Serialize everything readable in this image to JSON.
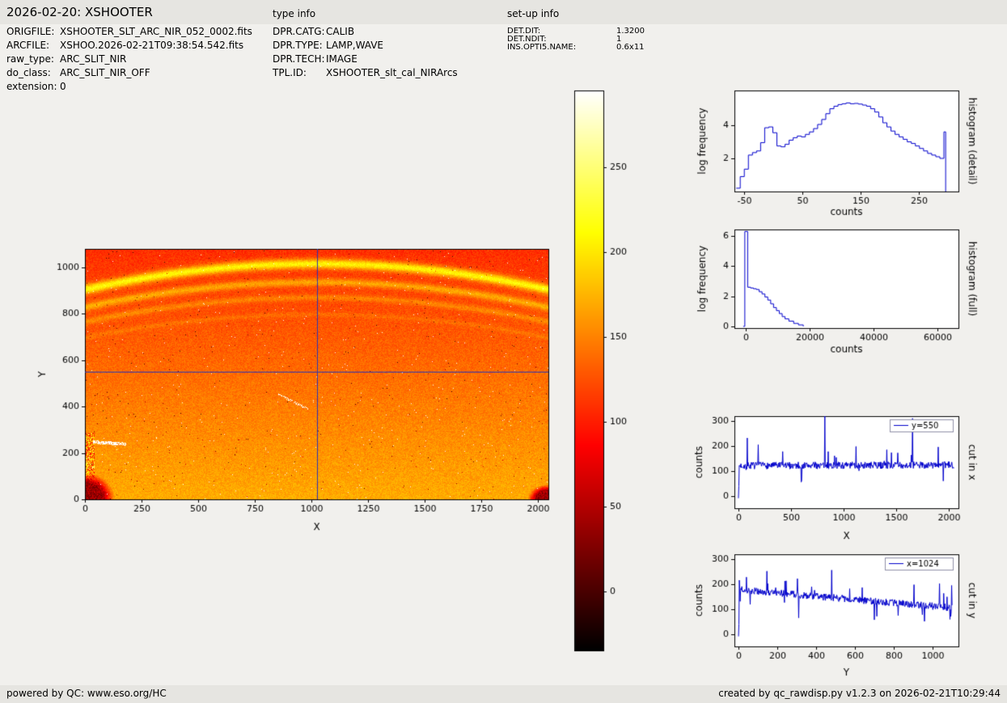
{
  "page": {
    "title": "2026-02-20: XSHOOTER",
    "footer_left": "powered by QC: www.eso.org/HC",
    "footer_right": "created by qc_rawdisp.py v1.2.3 on 2026-02-21T10:29:44"
  },
  "file_info": {
    "rows": [
      {
        "label": "ORIGFILE:",
        "value": "XSHOOTER_SLT_ARC_NIR_052_0002.fits"
      },
      {
        "label": "ARCFILE:",
        "value": "XSHOO.2026-02-21T09:38:54.542.fits"
      },
      {
        "label": "raw_type:",
        "value": "ARC_SLIT_NIR"
      },
      {
        "label": "do_class:",
        "value": "ARC_SLIT_NIR_OFF"
      },
      {
        "label": "extension:",
        "value": "0"
      }
    ]
  },
  "type_info": {
    "heading": "type info",
    "rows": [
      {
        "label": "DPR.CATG:",
        "value": "CALIB"
      },
      {
        "label": "DPR.TYPE:",
        "value": "LAMP,WAVE"
      },
      {
        "label": "DPR.TECH:",
        "value": "IMAGE"
      },
      {
        "label": "TPL.ID:",
        "value": "XSHOOTER_slt_cal_NIRArcs"
      }
    ]
  },
  "setup_info": {
    "heading": "set-up info",
    "rows": [
      {
        "label": "DET.DIT:",
        "value": "1.3200"
      },
      {
        "label": "DET.NDIT:",
        "value": "1"
      },
      {
        "label": "INS.OPTI5.NAME:",
        "value": "0.6x11"
      }
    ]
  },
  "chart_data": [
    {
      "id": "raw_image",
      "type": "heatmap",
      "xlabel": "X",
      "ylabel": "Y",
      "xlim": [
        0,
        2048
      ],
      "ylim": [
        0,
        1080
      ],
      "xticks": [
        0,
        250,
        500,
        750,
        1000,
        1250,
        1500,
        1750,
        2000
      ],
      "yticks": [
        0,
        200,
        400,
        600,
        800,
        1000
      ],
      "colormap": "hot",
      "vmin": -35,
      "vmax": 295,
      "crosshair": {
        "x": 1024,
        "y": 550,
        "color": "#2b35b5"
      },
      "background": {
        "top_counts": 108,
        "bottom_counts": 170,
        "noise": 14
      },
      "arcs": [
        {
          "peak_y": 1017,
          "sag": 111,
          "width": 15,
          "amplitude": 95
        },
        {
          "peak_y": 937,
          "sag": 108,
          "width": 12,
          "amplitude": 50
        },
        {
          "peak_y": 871,
          "sag": 105,
          "width": 10,
          "amplitude": 28
        },
        {
          "peak_y": 798,
          "sag": 100,
          "width": 8,
          "amplitude": 14
        }
      ],
      "defects": {
        "dark_corners": [
          "bottom-left",
          "bottom-right"
        ],
        "left_edge_speckle_below_y": 285,
        "hot_pixel_fraction": 0.0025
      }
    },
    {
      "id": "colorbar",
      "type": "colorbar",
      "colormap": "hot",
      "vmin": -35,
      "vmax": 295,
      "ticks": [
        0,
        50,
        100,
        150,
        200,
        250
      ]
    },
    {
      "id": "histogram_detail",
      "type": "line",
      "step": true,
      "title_right": "histogram (detail)",
      "xlabel": "counts",
      "ylabel": "log frequency",
      "line_color": "#0000cc",
      "xlim": [
        -67,
        318
      ],
      "ylim": [
        0,
        6.1
      ],
      "xticks": [
        -50,
        50,
        150,
        250
      ],
      "yticks": [
        2,
        4
      ],
      "x": [
        -64,
        -57,
        -50,
        -43,
        -36,
        -29,
        -22,
        -15,
        -8,
        -1,
        6,
        13,
        20,
        27,
        34,
        41,
        48,
        55,
        62,
        69,
        76,
        83,
        90,
        97,
        104,
        111,
        118,
        125,
        132,
        139,
        146,
        153,
        160,
        167,
        174,
        181,
        188,
        195,
        202,
        209,
        216,
        223,
        230,
        237,
        244,
        251,
        258,
        265,
        272,
        279,
        286,
        290,
        293,
        296
      ],
      "y": [
        0.2,
        0.9,
        1.35,
        2.2,
        2.35,
        2.45,
        2.95,
        3.85,
        3.9,
        3.55,
        2.75,
        2.7,
        2.85,
        3.1,
        3.25,
        3.35,
        3.3,
        3.45,
        3.6,
        3.8,
        4.05,
        4.35,
        4.7,
        5.0,
        5.15,
        5.25,
        5.3,
        5.35,
        5.3,
        5.32,
        5.28,
        5.22,
        5.15,
        5.0,
        4.8,
        4.5,
        4.15,
        3.9,
        3.65,
        3.45,
        3.3,
        3.15,
        3.0,
        2.9,
        2.75,
        2.6,
        2.45,
        2.3,
        2.2,
        2.1,
        2.0,
        2.0,
        3.6,
        0.0
      ]
    },
    {
      "id": "histogram_full",
      "type": "line",
      "step": true,
      "title_right": "histogram (full)",
      "xlabel": "counts",
      "ylabel": "log frequency",
      "line_color": "#0000cc",
      "xlim": [
        -3550,
        66600
      ],
      "ylim": [
        -0.11,
        6.43
      ],
      "xticks": [
        0,
        20000,
        40000,
        60000
      ],
      "yticks": [
        0,
        2,
        4,
        6
      ],
      "x": [
        -800,
        -300,
        600,
        1500,
        2400,
        3300,
        4200,
        5100,
        6000,
        6900,
        7800,
        8700,
        9600,
        10500,
        11400,
        12300,
        13500,
        15000,
        16500,
        18000
      ],
      "y": [
        0,
        6.3,
        2.6,
        2.55,
        2.5,
        2.45,
        2.3,
        2.15,
        1.95,
        1.75,
        1.5,
        1.25,
        1.05,
        0.85,
        0.65,
        0.5,
        0.35,
        0.2,
        0.1,
        0
      ]
    },
    {
      "id": "cut_in_x",
      "type": "line",
      "title_right": "cut in x",
      "xlabel": "X",
      "ylabel": "counts",
      "legend": "y=550",
      "line_color": "#0000cc",
      "xlim": [
        -38,
        2092
      ],
      "ylim": [
        -48,
        319
      ],
      "xticks": [
        0,
        500,
        1000,
        1500,
        2000
      ],
      "yticks": [
        0,
        100,
        200,
        300
      ],
      "noise": {
        "baseline_start": 122,
        "baseline_end": 124,
        "amplitude": 14,
        "seed": 7,
        "n": 512,
        "x_max": 2048,
        "edge_dip": true
      },
      "spikes": [
        {
          "x": 85,
          "y": 232
        },
        {
          "x": 190,
          "y": 205
        },
        {
          "x": 420,
          "y": 178
        },
        {
          "x": 600,
          "y": 62
        },
        {
          "x": 823,
          "y": 320
        },
        {
          "x": 1120,
          "y": 198
        },
        {
          "x": 1410,
          "y": 185
        },
        {
          "x": 1654,
          "y": 310
        },
        {
          "x": 1900,
          "y": 196
        }
      ]
    },
    {
      "id": "cut_in_y",
      "type": "line",
      "title_right": "cut in y",
      "xlabel": "Y",
      "ylabel": "counts",
      "legend": "x=1024",
      "line_color": "#0000cc",
      "xlim": [
        -21,
        1133
      ],
      "ylim": [
        -48,
        319
      ],
      "xticks": [
        0,
        200,
        400,
        600,
        800,
        1000
      ],
      "yticks": [
        0,
        100,
        200,
        300
      ],
      "noise": {
        "baseline_start": 178,
        "baseline_end": 106,
        "amplitude": 14,
        "seed": 12,
        "n": 512,
        "x_max": 1100,
        "edge_dip": true
      },
      "spikes": [
        {
          "x": 40,
          "y": 228
        },
        {
          "x": 146,
          "y": 252
        },
        {
          "x": 310,
          "y": 66
        },
        {
          "x": 479,
          "y": 256
        },
        {
          "x": 700,
          "y": 58
        },
        {
          "x": 905,
          "y": 198
        },
        {
          "x": 958,
          "y": 52
        },
        {
          "x": 1035,
          "y": 202
        },
        {
          "x": 1090,
          "y": 60
        },
        {
          "x": 1098,
          "y": 195
        }
      ]
    }
  ]
}
